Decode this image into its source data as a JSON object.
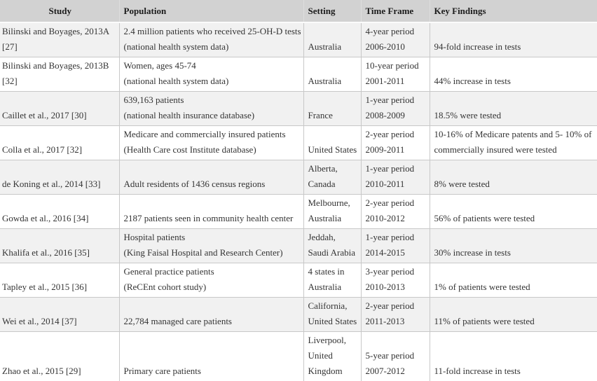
{
  "table": {
    "columns": [
      "Study",
      "Population",
      "Setting",
      "Time Frame",
      "Key Findings"
    ],
    "rows": [
      {
        "study": [
          "Bilinski and Boyages, 2013A",
          "[27]"
        ],
        "population": [
          "2.4 million patients who received 25-OH-D tests",
          "(national health system data)"
        ],
        "setting": [
          "Australia"
        ],
        "time_frame": [
          "4-year period",
          "2006-2010"
        ],
        "key_findings": [
          "94-fold increase in tests"
        ]
      },
      {
        "study": [
          "Bilinski and Boyages, 2013B",
          "[32]"
        ],
        "population": [
          "Women, ages 45-74",
          "(national health system data)"
        ],
        "setting": [
          "Australia"
        ],
        "time_frame": [
          "10-year period",
          "2001-2011"
        ],
        "key_findings": [
          "44% increase in tests"
        ]
      },
      {
        "study": [
          "Caillet et al., 2017 [30]"
        ],
        "population": [
          "639,163 patients",
          "(national health insurance database)"
        ],
        "setting": [
          "France"
        ],
        "time_frame": [
          "1-year period",
          "2008-2009"
        ],
        "key_findings": [
          "18.5% were tested"
        ]
      },
      {
        "study": [
          "Colla et al., 2017 [32]"
        ],
        "population": [
          "Medicare and commercially insured patients",
          "(Health Care cost Institute database)"
        ],
        "setting": [
          "United States"
        ],
        "time_frame": [
          "2-year period",
          "2009-2011"
        ],
        "key_findings": [
          "10-16% of Medicare patents and 5- 10% of",
          "commercially insured were tested"
        ]
      },
      {
        "study": [
          "de Koning et al., 2014 [33]"
        ],
        "population": [
          "Adult residents of 1436 census regions"
        ],
        "setting": [
          "Alberta,",
          "Canada"
        ],
        "time_frame": [
          "1-year period",
          "2010-2011"
        ],
        "key_findings": [
          "8% were tested"
        ]
      },
      {
        "study": [
          "Gowda et al., 2016 [34]"
        ],
        "population": [
          "2187 patients seen in community health center"
        ],
        "setting": [
          "Melbourne,",
          "Australia"
        ],
        "time_frame": [
          "2-year period",
          "2010-2012"
        ],
        "key_findings": [
          "56% of patients were tested"
        ]
      },
      {
        "study": [
          "Khalifa et al., 2016 [35]"
        ],
        "population": [
          "Hospital patients",
          "(King Faisal Hospital and Research Center)"
        ],
        "setting": [
          "Jeddah,",
          "Saudi Arabia"
        ],
        "time_frame": [
          "1-year period",
          "2014-2015"
        ],
        "key_findings": [
          "30% increase in tests"
        ]
      },
      {
        "study": [
          "Tapley et al., 2015 [36]"
        ],
        "population": [
          "General practice patients",
          "(ReCEnt cohort study)"
        ],
        "setting": [
          "4 states in",
          "Australia"
        ],
        "time_frame": [
          "3-year period",
          "2010-2013"
        ],
        "key_findings": [
          "1% of patients were tested"
        ]
      },
      {
        "study": [
          "Wei et al., 2014 [37]"
        ],
        "population": [
          "22,784 managed care patients"
        ],
        "setting": [
          "California,",
          "United States"
        ],
        "time_frame": [
          "2-year period",
          "2011-2013"
        ],
        "key_findings": [
          "11% of patients were tested"
        ]
      },
      {
        "study": [
          "Zhao et al., 2015 [29]"
        ],
        "population": [
          "Primary care patients"
        ],
        "setting": [
          "Liverpool,",
          "United",
          "Kingdom"
        ],
        "time_frame": [
          "5-year period",
          "2007-2012"
        ],
        "key_findings": [
          "11-fold increase in tests"
        ]
      }
    ]
  }
}
